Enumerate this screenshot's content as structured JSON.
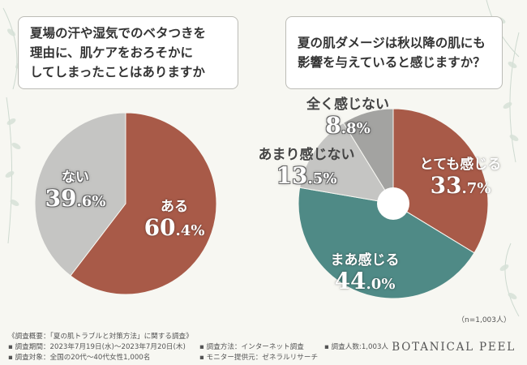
{
  "colors": {
    "brick": "#a85a48",
    "gray_light": "#c5c5c3",
    "gray_mid": "#b8b8b6",
    "gray_dark": "#a3a3a1",
    "teal": "#4f8a86",
    "background": "#f7f7f2"
  },
  "chart_data": [
    {
      "type": "pie",
      "title": "夏場の汗や湿気でのベタつきを\n理由に、肌ケアをおろそかに\nしてしまったことはありますか",
      "slices": [
        {
          "label": "ある",
          "value": 60.4,
          "display_int": "60",
          "display_dec": ".4%",
          "color": "#a85a48"
        },
        {
          "label": "ない",
          "value": 39.6,
          "display_int": "39",
          "display_dec": ".6%",
          "color": "#c5c5c3"
        }
      ]
    },
    {
      "type": "pie",
      "title": "夏の肌ダメージは秋以降の肌にも\n影響を与えていると感じますか？",
      "slices": [
        {
          "label": "とても感じる",
          "value": 33.7,
          "display_int": "33",
          "display_dec": ".7%",
          "color": "#a85a48"
        },
        {
          "label": "まあ感じる",
          "value": 44.0,
          "display_int": "44",
          "display_dec": ".0%",
          "color": "#4f8a86"
        },
        {
          "label": "あまり感じない",
          "value": 13.5,
          "display_int": "13",
          "display_dec": ".5%",
          "color": "#c5c5c3"
        },
        {
          "label": "全く感じない",
          "value": 8.8,
          "display_int": "8",
          "display_dec": ".8%",
          "color": "#a3a3a1"
        }
      ],
      "note": "（n=1,003人）"
    }
  ],
  "footer": {
    "overview": "《調査概要：「夏の肌トラブルと対策方法」に関する調査》",
    "period": "▪ 調査期間：2023年7月19日(水)〜2023年7月20日(木)",
    "target": "▪ 調査対象：全国の20代〜40代女性1,000名",
    "method": "▪ 調査方法：インターネット調査",
    "monitor": "▪ モニター提供元：ゼネラルリサーチ",
    "count": "▪ 調査人数:1,003人",
    "brand": "BOTANICAL PEEL"
  }
}
